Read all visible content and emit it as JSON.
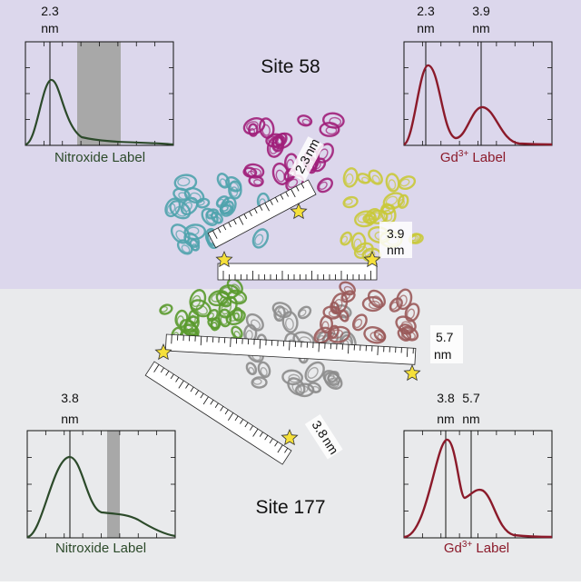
{
  "sites": {
    "top_title": "Site 58",
    "bottom_title": "Site 177"
  },
  "panels": {
    "top_left": {
      "label": "Nitroxide Label",
      "markers": [
        {
          "text1": "2.3",
          "text2": "nm"
        }
      ]
    },
    "top_right": {
      "label_main": "Gd",
      "label_sup": "3+",
      "label_rest": " Label",
      "markers": [
        {
          "text1": "2.3",
          "text2": "nm"
        },
        {
          "text1": "3.9",
          "text2": "nm"
        }
      ]
    },
    "bottom_left": {
      "label": "Nitroxide Label",
      "markers": [
        {
          "text1": "3.8",
          "text2": "nm"
        }
      ]
    },
    "bottom_right": {
      "label_main": "Gd",
      "label_sup": "3+",
      "label_rest": " Label",
      "markers": [
        {
          "text1": "3.8",
          "text2": "nm"
        },
        {
          "text1": "5.7",
          "text2": "nm"
        }
      ]
    }
  },
  "rulers": [
    {
      "value": "2.3",
      "unit": "nm"
    },
    {
      "value": "3.9",
      "unit": "nm"
    },
    {
      "value": "5.7",
      "unit": "nm"
    },
    {
      "value": "3.8",
      "unit": "nm"
    }
  ],
  "colors": {
    "top_bg": "#dcd7ec",
    "bottom_bg": "#e9eaec",
    "nitroxide": "#2c4a2a",
    "gd": "#8b1a2a",
    "shade": "#a8a8a8",
    "star": "#f5e03a",
    "cyan_protein": "#4fa3ad",
    "magenta_protein": "#a01f7a",
    "yellow_protein": "#c9c93a",
    "green_protein": "#5a9a2e",
    "grey_protein": "#8c8c8c",
    "rose_protein": "#9a5a5a"
  }
}
